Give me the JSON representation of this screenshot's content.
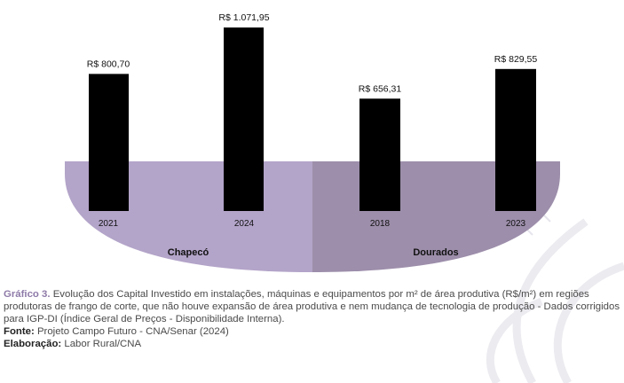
{
  "chart_data": {
    "type": "bar",
    "title": "",
    "xlabel": "",
    "ylabel": "",
    "ylim": [
      0,
      1100
    ],
    "groups": [
      {
        "name": "Chapecó",
        "color": "#b3a4c9",
        "categories": [
          "2021",
          "2024"
        ],
        "values": [
          800.7,
          1071.95
        ],
        "value_labels": [
          "R$ 800,70",
          "R$ 1.071,95"
        ]
      },
      {
        "name": "Dourados",
        "color": "#9d8eab",
        "categories": [
          "2018",
          "2023"
        ],
        "values": [
          656.31,
          829.55
        ],
        "value_labels": [
          "R$ 656,31",
          "R$ 829,55"
        ]
      }
    ],
    "bar_color": "#000000"
  },
  "caption": {
    "title": "Gráfico 3.",
    "text": " Evolução dos Capital Investido em instalações, máquinas e equipamentos por m² de área produtiva (R$/m²) em regiões produtoras de frango de corte, que não houve expansão de área produtiva e nem mudança de tecnologia de produção - Dados corrigidos para IGP-DI (Índice Geral de Preços - Disponibilidade Interna).",
    "source_label": "Fonte:",
    "source_text": " Projeto Campo Futuro - CNA/Senar (2024)",
    "credit_label": "Elaboração:",
    "credit_text": " Labor Rural/CNA"
  }
}
